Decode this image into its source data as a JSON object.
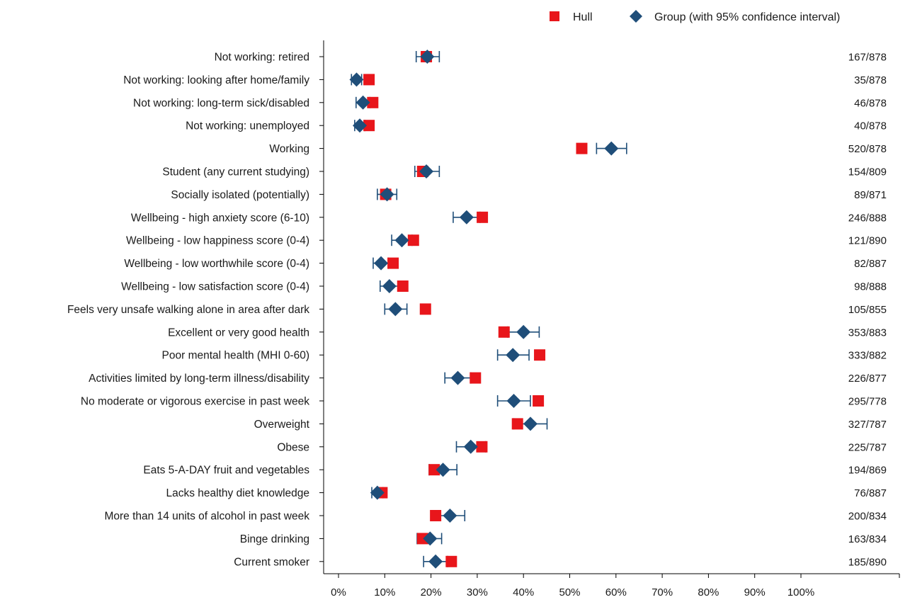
{
  "chart_data": {
    "type": "scatter",
    "xlim": [
      0,
      100
    ],
    "xticks": [
      "0%",
      "10%",
      "20%",
      "30%",
      "40%",
      "50%",
      "60%",
      "70%",
      "80%",
      "90%",
      "100%"
    ],
    "xtick_values": [
      0,
      10,
      20,
      30,
      40,
      50,
      60,
      70,
      80,
      90,
      100
    ],
    "grid": false,
    "legend_position": "top-right",
    "legend": [
      {
        "name": "Hull",
        "marker": "square",
        "color": "#e8161b"
      },
      {
        "name": "Group (with 95% confidence interval)",
        "marker": "diamond",
        "color": "#1f4e79"
      }
    ],
    "colors": {
      "hull": "#e8161b",
      "group": "#1f4e79",
      "axis": "#000000"
    },
    "categories": [
      "Not working: retired",
      "Not working: looking after home/family",
      "Not working: long-term sick/disabled",
      "Not working: unemployed",
      "Working",
      "Student (any current studying)",
      "Socially isolated (potentially)",
      "Wellbeing - high anxiety score (6-10)",
      "Wellbeing - low happiness score (0-4)",
      "Wellbeing - low worthwhile score (0-4)",
      "Wellbeing - low satisfaction score (0-4)",
      "Feels very unsafe walking alone in area after dark",
      "Excellent or very good health",
      "Poor mental health (MHI 0-60)",
      "Activities limited by long-term illness/disability",
      "No moderate or vigorous exercise in past week",
      "Overweight",
      "Obese",
      "Eats 5-A-DAY fruit and vegetables",
      "Lacks healthy diet knowledge",
      "More than 14 units of alcohol in past week",
      "Binge drinking",
      "Current smoker"
    ],
    "counts": [
      "167/878",
      "35/878",
      "46/878",
      "40/878",
      "520/878",
      "154/809",
      "89/871",
      "246/888",
      "121/890",
      "82/887",
      "98/888",
      "105/855",
      "353/883",
      "333/882",
      "226/877",
      "295/778",
      "327/787",
      "225/787",
      "194/869",
      "76/887",
      "200/834",
      "163/834",
      "185/890"
    ],
    "series": [
      {
        "name": "Hull",
        "values": [
          19.0,
          6.6,
          7.4,
          6.6,
          52.6,
          18.2,
          10.2,
          31.1,
          16.2,
          11.8,
          13.9,
          18.8,
          35.8,
          43.5,
          29.6,
          43.2,
          38.7,
          31.0,
          20.7,
          9.4,
          21.0,
          18.2,
          24.4
        ]
      },
      {
        "name": "Group (with 95% confidence interval)",
        "values": [
          19.2,
          3.9,
          5.3,
          4.6,
          59.0,
          19.0,
          10.5,
          27.7,
          13.7,
          9.2,
          11.0,
          12.3,
          40.0,
          37.7,
          25.8,
          37.9,
          41.5,
          28.6,
          22.6,
          8.4,
          24.1,
          19.8,
          21.0
        ],
        "ci_low": [
          16.8,
          2.8,
          3.8,
          3.5,
          55.8,
          16.5,
          8.4,
          24.8,
          11.5,
          7.5,
          9.0,
          10.0,
          36.6,
          34.4,
          23.0,
          34.4,
          37.9,
          25.5,
          19.6,
          7.2,
          21.0,
          17.0,
          18.4
        ],
        "ci_high": [
          21.8,
          5.0,
          6.8,
          5.7,
          62.3,
          21.8,
          12.6,
          30.6,
          15.9,
          10.8,
          13.0,
          14.8,
          43.4,
          41.2,
          28.6,
          41.5,
          45.1,
          31.8,
          25.6,
          9.6,
          27.3,
          22.3,
          23.6
        ]
      }
    ]
  }
}
